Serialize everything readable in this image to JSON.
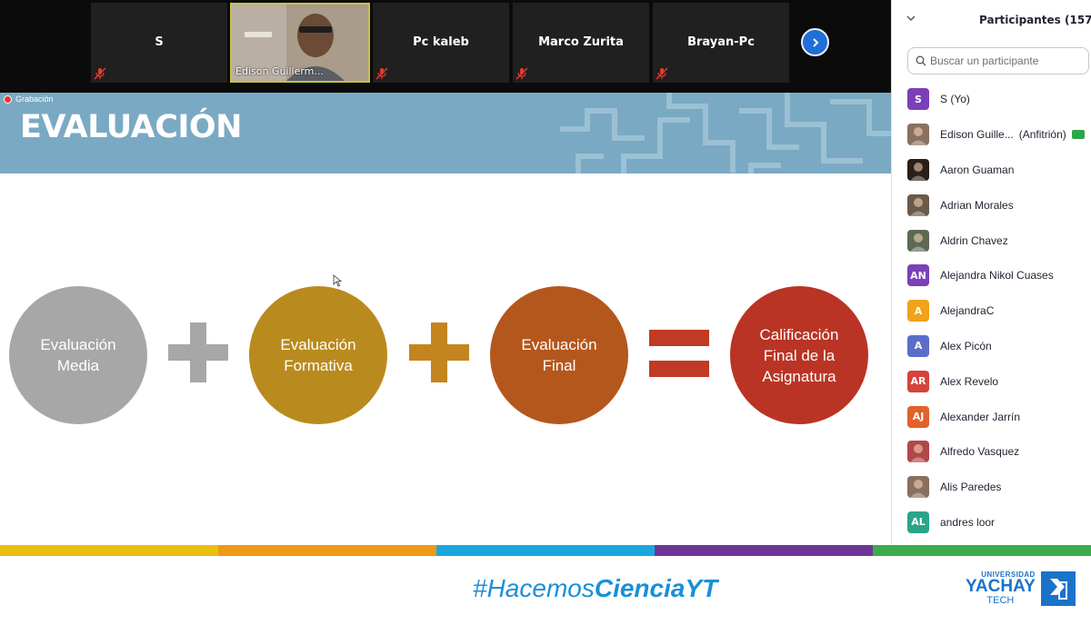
{
  "video_strip": {
    "tiles": [
      {
        "name": "S"
      },
      {
        "name": "Edison Guillerm..."
      },
      {
        "name": "Pc kaleb"
      },
      {
        "name": "Marco Zurita"
      },
      {
        "name": "Brayan-Pc"
      }
    ]
  },
  "recording": {
    "label": "Grabación"
  },
  "slide": {
    "title": "EVALUACIÓN",
    "circles": [
      {
        "line1": "Evaluación",
        "line2": "Media",
        "line3": "",
        "color": "#a7a7a7"
      },
      {
        "line1": "Evaluación",
        "line2": "Formativa",
        "line3": "",
        "color": "#b98a1e"
      },
      {
        "line1": "Evaluación",
        "line2": "Final",
        "line3": "",
        "color": "#b4571c"
      },
      {
        "line1": "Calificación",
        "line2": "Final de la",
        "line3": "Asignatura",
        "color": "#b93424"
      }
    ],
    "operators": [
      "+",
      "+",
      "="
    ],
    "operator_colors": [
      "#a7a7a7",
      "#c4851e",
      "#c03a24"
    ],
    "banner_color": "#7aa9c4"
  },
  "color_bar": [
    "#e8bf0f",
    "#ee9913",
    "#1aa7e0",
    "#6d3597",
    "#3cab4c"
  ],
  "footer": {
    "hashtag_prefix": "#Hacemos",
    "hashtag_bold": "CienciaYT",
    "logo_line1": "UNIVERSIDAD",
    "logo_line2": "YACHAY",
    "logo_line3": "TECH"
  },
  "participants": {
    "title": "Participantes (157)",
    "search_placeholder": "Buscar un participante",
    "list": [
      {
        "initials": "S",
        "name": "S (Yo)",
        "role": "",
        "color": "#7b3fb8",
        "photo": false,
        "host": false
      },
      {
        "initials": "",
        "name": "Edison Guille...",
        "role": "(Anfitrión)",
        "color": "#8a7060",
        "photo": true,
        "host": true
      },
      {
        "initials": "",
        "name": "Aaron Guaman",
        "role": "",
        "color": "#2a2018",
        "photo": true,
        "host": false
      },
      {
        "initials": "",
        "name": "Adrian Morales",
        "role": "",
        "color": "#6b5a4a",
        "photo": true,
        "host": false
      },
      {
        "initials": "",
        "name": "Aldrin Chavez",
        "role": "",
        "color": "#5c6a54",
        "photo": true,
        "host": false
      },
      {
        "initials": "AN",
        "name": "Alejandra Nikol Cuases",
        "role": "",
        "color": "#7b3fb8",
        "photo": false,
        "host": false
      },
      {
        "initials": "A",
        "name": "AlejandraC",
        "role": "",
        "color": "#f0a21a",
        "photo": false,
        "host": false
      },
      {
        "initials": "A",
        "name": "Alex Picón",
        "role": "",
        "color": "#5a6ec9",
        "photo": false,
        "host": false
      },
      {
        "initials": "AR",
        "name": "Alex Revelo",
        "role": "",
        "color": "#d6433a",
        "photo": false,
        "host": false
      },
      {
        "initials": "AJ",
        "name": "Alexander Jarrín",
        "role": "",
        "color": "#e2612a",
        "photo": false,
        "host": false
      },
      {
        "initials": "",
        "name": "Alfredo Vasquez",
        "role": "",
        "color": "#b2474b",
        "photo": true,
        "host": false
      },
      {
        "initials": "",
        "name": "Alis Paredes",
        "role": "",
        "color": "#8a6e5e",
        "photo": true,
        "host": false
      },
      {
        "initials": "AL",
        "name": "andres loor",
        "role": "",
        "color": "#2aa58a",
        "photo": false,
        "host": false
      }
    ]
  }
}
